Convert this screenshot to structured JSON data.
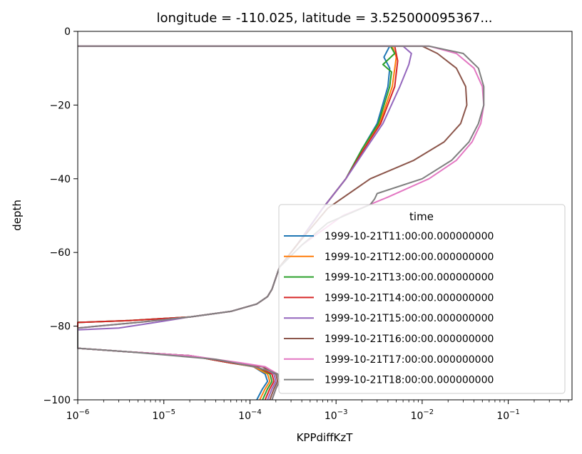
{
  "chart_data": {
    "type": "line",
    "title": "longitude = -110.025, latitude = 3.525000095367...",
    "xlabel": "KPPdiffKzT",
    "ylabel": "depth",
    "xscale": "log",
    "xlim": [
      1e-06,
      0.55
    ],
    "ylim": [
      -100,
      0
    ],
    "x_ticks": [
      {
        "value": 1e-06,
        "base": "10",
        "exp": "−6"
      },
      {
        "value": 1e-05,
        "base": "10",
        "exp": "−5"
      },
      {
        "value": 0.0001,
        "base": "10",
        "exp": "−4"
      },
      {
        "value": 0.001,
        "base": "10",
        "exp": "−3"
      },
      {
        "value": 0.01,
        "base": "10",
        "exp": "−2"
      },
      {
        "value": 0.1,
        "base": "10",
        "exp": "−1"
      }
    ],
    "y_ticks": [
      {
        "value": 0,
        "label": "0"
      },
      {
        "value": -20,
        "label": "−20"
      },
      {
        "value": -40,
        "label": "−40"
      },
      {
        "value": -60,
        "label": "−60"
      },
      {
        "value": -80,
        "label": "−80"
      },
      {
        "value": -100,
        "label": "−100"
      }
    ],
    "grid": false,
    "legend": {
      "title": "time",
      "placement": "lower-right"
    },
    "series": [
      {
        "name": "1999-10-21T11:00:00.000000000",
        "color": "#1f77b4",
        "x": [
          1e-06,
          0.0042,
          0.0036,
          0.0042,
          0.004,
          0.003,
          0.002,
          0.0013,
          0.0007,
          0.00035,
          0.00022,
          0.00018,
          0.00016,
          0.00012,
          6e-05,
          2e-05,
          4e-06,
          1e-06,
          1e-06,
          4e-06,
          2e-05,
          6e-05,
          0.00011,
          0.00015,
          0.00016,
          0.00014,
          0.00012
        ],
        "y": [
          -4,
          -4,
          -7,
          -10,
          -15,
          -25,
          -32,
          -40,
          -48,
          -58,
          -64,
          -70,
          -72,
          -74,
          -76,
          -77.5,
          -78.5,
          -79,
          -86,
          -87,
          -88,
          -90,
          -91,
          -93,
          -95,
          -97,
          -100
        ]
      },
      {
        "name": "1999-10-21T12:00:00.000000000",
        "color": "#ff7f0e",
        "x": [
          1e-06,
          0.0045,
          0.005,
          0.0045,
          0.0032,
          0.0021,
          0.0013,
          0.0007,
          0.00035,
          0.00022,
          0.00018,
          0.00016,
          0.00012,
          6e-05,
          2e-05,
          4e-06,
          1e-06,
          1e-06,
          4e-06,
          2e-05,
          6e-05,
          0.00011,
          0.00016,
          0.00017,
          0.00015,
          0.00013
        ],
        "y": [
          -4,
          -4,
          -7,
          -15,
          -25,
          -32,
          -40,
          -48,
          -58,
          -64,
          -70,
          -72,
          -74,
          -76,
          -77.5,
          -78.5,
          -79,
          -86,
          -87,
          -88,
          -90,
          -91,
          -93,
          -95,
          -97,
          -100
        ]
      },
      {
        "name": "1999-10-21T13:00:00.000000000",
        "color": "#2ca02c",
        "x": [
          1e-06,
          0.0043,
          0.0048,
          0.0035,
          0.0044,
          0.0042,
          0.0031,
          0.002,
          0.0013,
          0.0007,
          0.00035,
          0.00022,
          0.00018,
          0.00016,
          0.00012,
          6e-05,
          2e-05,
          4e-06,
          1e-06,
          1e-06,
          4e-06,
          2e-05,
          6e-05,
          0.00012,
          0.00017,
          0.00018,
          0.00016,
          0.00014
        ],
        "y": [
          -4,
          -4,
          -6,
          -9,
          -11,
          -15,
          -25,
          -32,
          -40,
          -48,
          -58,
          -64,
          -70,
          -72,
          -74,
          -76,
          -77.5,
          -78.5,
          -79,
          -86,
          -87,
          -88,
          -90,
          -91,
          -93,
          -95,
          -97,
          -100
        ]
      },
      {
        "name": "1999-10-21T14:00:00.000000000",
        "color": "#d62728",
        "x": [
          1e-06,
          0.0048,
          0.0052,
          0.0048,
          0.0033,
          0.0021,
          0.0013,
          0.0007,
          0.00035,
          0.00022,
          0.00018,
          0.00016,
          0.00012,
          6e-05,
          2e-05,
          4e-06,
          1e-06,
          1e-06,
          4e-06,
          2e-05,
          6e-05,
          0.00012,
          0.00018,
          0.00019,
          0.00017,
          0.00015
        ],
        "y": [
          -4,
          -4,
          -8,
          -15,
          -25,
          -32,
          -40,
          -48,
          -58,
          -64,
          -70,
          -72,
          -74,
          -76,
          -77.5,
          -78.5,
          -79,
          -86,
          -87,
          -88,
          -90,
          -91,
          -93,
          -95,
          -97,
          -100
        ]
      },
      {
        "name": "1999-10-21T15:00:00.000000000",
        "color": "#9467bd",
        "x": [
          1e-06,
          0.006,
          0.0075,
          0.007,
          0.0055,
          0.0035,
          0.0022,
          0.0013,
          0.0007,
          0.00035,
          0.00022,
          0.00018,
          0.00016,
          0.00012,
          6e-05,
          2e-05,
          8e-06,
          3e-06,
          1e-06,
          1e-06,
          4e-06,
          2e-05,
          7e-05,
          0.00014,
          0.00019,
          0.0002,
          0.00018,
          0.00016
        ],
        "y": [
          -4,
          -4,
          -6,
          -9,
          -15,
          -25,
          -32,
          -40,
          -48,
          -58,
          -64,
          -70,
          -72,
          -74,
          -76,
          -77.5,
          -79,
          -80.5,
          -81,
          -86,
          -87,
          -88,
          -90,
          -91,
          -93,
          -95,
          -97,
          -100
        ]
      },
      {
        "name": "1999-10-21T16:00:00.000000000",
        "color": "#8c564b",
        "x": [
          1e-06,
          0.01,
          0.015,
          0.025,
          0.032,
          0.033,
          0.028,
          0.018,
          0.008,
          0.0025,
          0.0008,
          0.00035,
          0.00022,
          0.00018,
          0.00016,
          0.00012,
          6e-05,
          2e-05,
          5e-06,
          1e-06,
          1e-06,
          4e-06,
          2e-05,
          7e-05,
          0.00014,
          0.0002,
          0.00021,
          0.00019,
          0.00017
        ],
        "y": [
          -4,
          -4,
          -6,
          -10,
          -15,
          -20,
          -25,
          -30,
          -35,
          -40,
          -48,
          -58,
          -64,
          -70,
          -72,
          -74,
          -76,
          -77.5,
          -79,
          -80.5,
          -86,
          -87,
          -88,
          -90,
          -91,
          -93,
          -95,
          -97,
          -100
        ]
      },
      {
        "name": "1999-10-21T17:00:00.000000000",
        "color": "#e377c2",
        "x": [
          1e-06,
          0.012,
          0.025,
          0.04,
          0.05,
          0.052,
          0.048,
          0.038,
          0.025,
          0.012,
          0.004,
          0.0012,
          0.0004,
          0.00022,
          0.00018,
          0.00016,
          0.00012,
          6e-05,
          2e-05,
          5e-06,
          1e-06,
          1e-06,
          4e-06,
          2e-05,
          8e-05,
          0.00015,
          0.00021,
          0.00022,
          0.0002,
          0.00018
        ],
        "y": [
          -4,
          -4,
          -6,
          -10,
          -15,
          -20,
          -25,
          -30,
          -35,
          -40,
          -45,
          -50,
          -58,
          -64,
          -70,
          -72,
          -74,
          -76,
          -77.5,
          -79,
          -80.5,
          -86,
          -87,
          -88,
          -90,
          -91,
          -93,
          -95,
          -97,
          -100
        ]
      },
      {
        "name": "1999-10-21T18:00:00.000000000",
        "color": "#7f7f7f",
        "x": [
          1e-06,
          0.012,
          0.03,
          0.045,
          0.052,
          0.052,
          0.045,
          0.035,
          0.022,
          0.01,
          0.003,
          0.0028,
          0.0025,
          0.0008,
          0.0004,
          0.00022,
          0.00018,
          0.00016,
          0.00012,
          6e-05,
          2e-05,
          5e-06,
          1e-06,
          1e-06,
          4e-06,
          4e-05,
          0.00011,
          0.00016,
          0.00021,
          0.00022,
          0.0002,
          0.00018
        ],
        "y": [
          -4,
          -4,
          -6,
          -10,
          -15,
          -20,
          -25,
          -30,
          -35,
          -40,
          -44,
          -45.5,
          -47,
          -52,
          -58,
          -64,
          -70,
          -72,
          -74,
          -76,
          -77.5,
          -79,
          -80.5,
          -86,
          -87,
          -89,
          -91,
          -92,
          -93,
          -95,
          -97,
          -100
        ]
      }
    ]
  }
}
